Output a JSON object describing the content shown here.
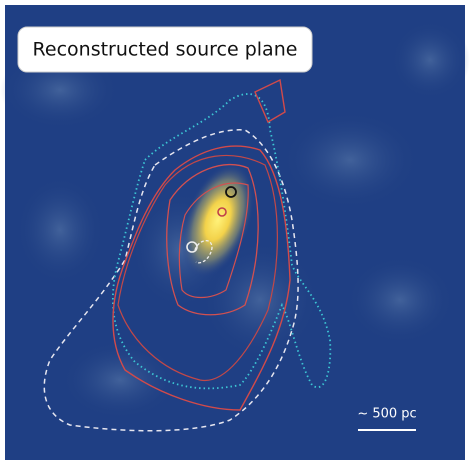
{
  "title": "Reconstructed source plane",
  "scale_bar": {
    "label": "~ 500 pc"
  }
}
